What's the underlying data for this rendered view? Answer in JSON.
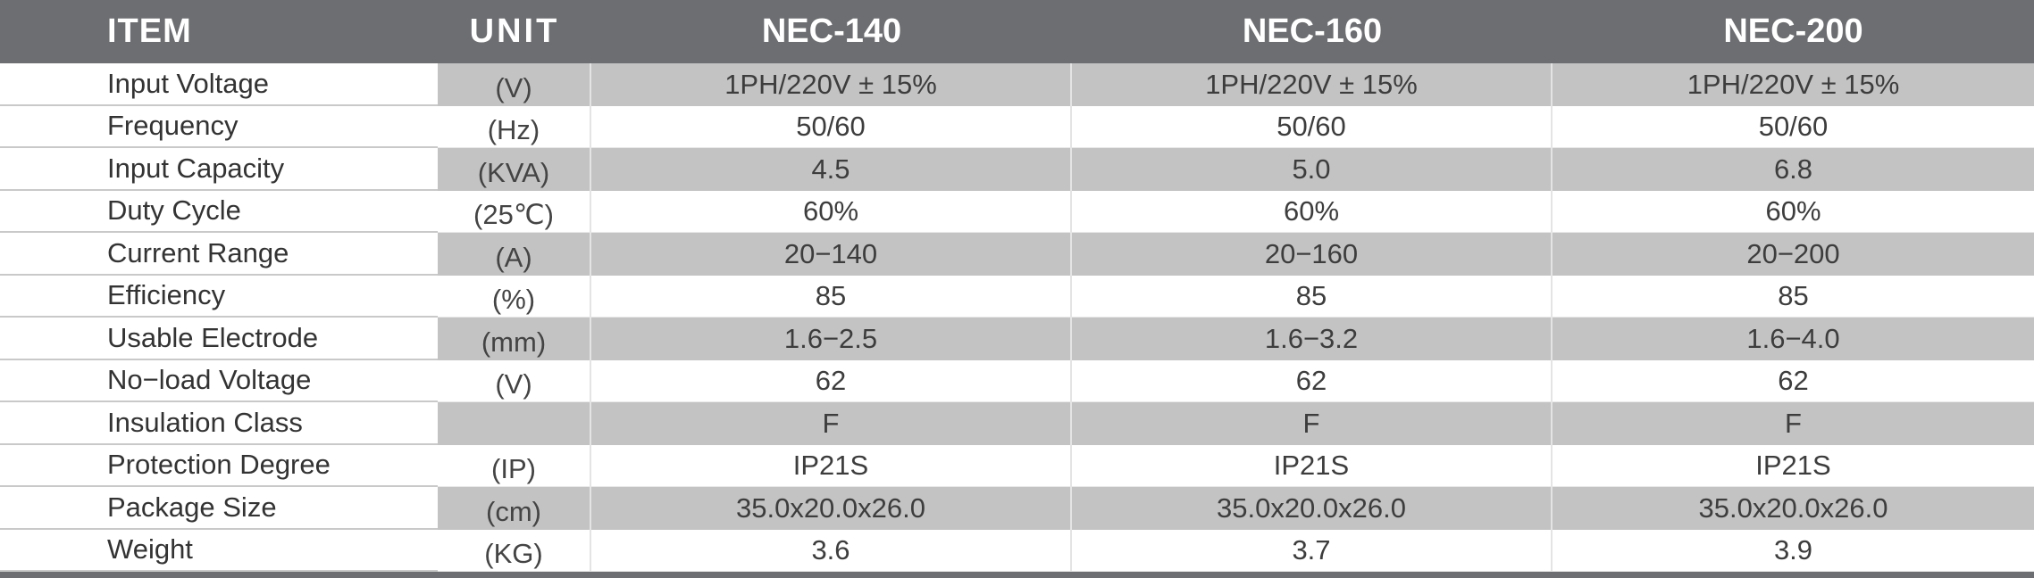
{
  "header": {
    "item": "ITEM",
    "unit": "UNIT",
    "models": [
      "NEC-140",
      "NEC-160",
      "NEC-200"
    ]
  },
  "rows": [
    {
      "item": "Input Voltage",
      "unit": "(V)",
      "values": [
        "1PH/220V ± 15%",
        "1PH/220V ± 15%",
        "1PH/220V ± 15%"
      ]
    },
    {
      "item": "Frequency",
      "unit": "(Hz)",
      "values": [
        "50/60",
        "50/60",
        "50/60"
      ]
    },
    {
      "item": "Input Capacity",
      "unit": "(KVA)",
      "values": [
        "4.5",
        "5.0",
        "6.8"
      ]
    },
    {
      "item": "Duty Cycle",
      "unit": "(25℃)",
      "values": [
        "60%",
        "60%",
        "60%"
      ]
    },
    {
      "item": "Current Range",
      "unit": "(A)",
      "values": [
        "20−140",
        "20−160",
        "20−200"
      ]
    },
    {
      "item": "Efficiency",
      "unit": "(%)",
      "values": [
        "85",
        "85",
        "85"
      ]
    },
    {
      "item": "Usable Electrode",
      "unit": "(mm)",
      "values": [
        "1.6−2.5",
        "1.6−3.2",
        "1.6−4.0"
      ]
    },
    {
      "item": "No−load Voltage",
      "unit": "(V)",
      "values": [
        "62",
        "62",
        "62"
      ]
    },
    {
      "item": "Insulation Class",
      "unit": "",
      "values": [
        "F",
        "F",
        "F"
      ]
    },
    {
      "item": "Protection Degree",
      "unit": "(IP)",
      "values": [
        "IP21S",
        "IP21S",
        "IP21S"
      ]
    },
    {
      "item": "Package Size",
      "unit": "(cm)",
      "values": [
        "35.0x20.0x26.0",
        "35.0x20.0x26.0",
        "35.0x20.0x26.0"
      ]
    },
    {
      "item": "Weight",
      "unit": "(KG)",
      "values": [
        "3.6",
        "3.7",
        "3.9"
      ]
    }
  ],
  "colors": {
    "header_bg": "#6d6e71",
    "shaded_cell": "#c3c3c3",
    "text": "#3a3a3a"
  }
}
